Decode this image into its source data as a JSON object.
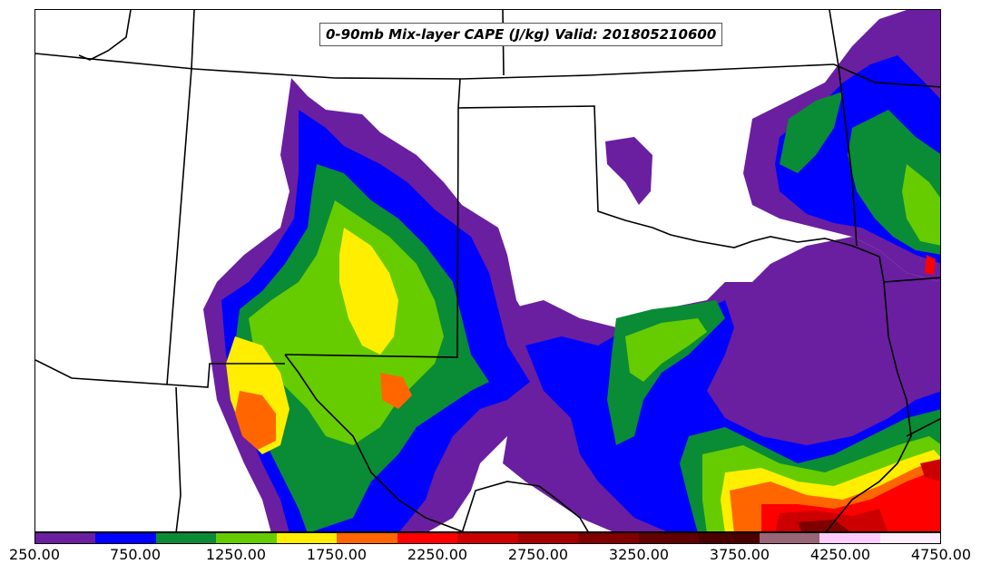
{
  "title": "0-90mb Mix-layer CAPE (J/kg) Valid: 201805210600",
  "colorbar": {
    "colors": [
      "#6a1fa0",
      "#0000ff",
      "#0a8b36",
      "#66cc00",
      "#ffee00",
      "#ff6600",
      "#ff0000",
      "#cc0000",
      "#a30000",
      "#800000",
      "#600000",
      "#4a0000",
      "#996677",
      "#ffccff",
      "#ffeeff"
    ],
    "tick_labels": [
      "250.00",
      "750.00",
      "1250.00",
      "1750.00",
      "2250.00",
      "2750.00",
      "3250.00",
      "3750.00",
      "4250.00",
      "4750.00"
    ]
  }
}
